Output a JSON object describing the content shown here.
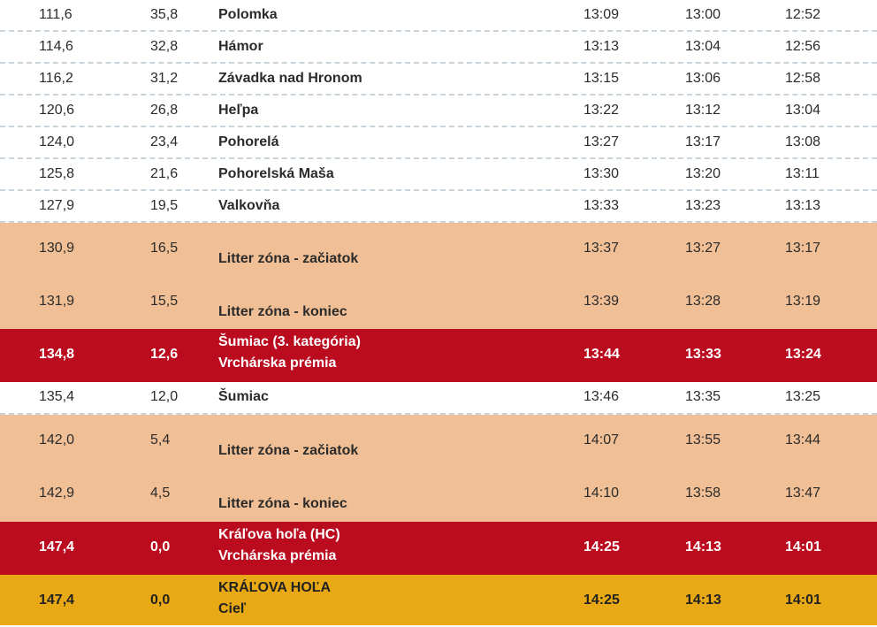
{
  "rows": [
    {
      "km": "111,6",
      "remaining": "35,8",
      "name": "Polomka",
      "name2": "",
      "t1": "13:09",
      "t2": "13:00",
      "t3": "12:52",
      "kind": "plain"
    },
    {
      "km": "114,6",
      "remaining": "32,8",
      "name": "Hámor",
      "name2": "",
      "t1": "13:13",
      "t2": "13:04",
      "t3": "12:56",
      "kind": "plain"
    },
    {
      "km": "116,2",
      "remaining": "31,2",
      "name": "Závadka nad Hronom",
      "name2": "",
      "t1": "13:15",
      "t2": "13:06",
      "t3": "12:58",
      "kind": "plain"
    },
    {
      "km": "120,6",
      "remaining": "26,8",
      "name": "Heľpa",
      "name2": "",
      "t1": "13:22",
      "t2": "13:12",
      "t3": "13:04",
      "kind": "plain"
    },
    {
      "km": "124,0",
      "remaining": "23,4",
      "name": "Pohorelá",
      "name2": "",
      "t1": "13:27",
      "t2": "13:17",
      "t3": "13:08",
      "kind": "plain"
    },
    {
      "km": "125,8",
      "remaining": "21,6",
      "name": "Pohorelská Maša",
      "name2": "",
      "t1": "13:30",
      "t2": "13:20",
      "t3": "13:11",
      "kind": "plain"
    },
    {
      "km": "127,9",
      "remaining": "19,5",
      "name": "Valkovňa",
      "name2": "",
      "t1": "13:33",
      "t2": "13:23",
      "t3": "13:13",
      "kind": "plain"
    },
    {
      "km": "130,9",
      "remaining": "16,5",
      "name": "Litter zóna - začiatok",
      "name2": "",
      "t1": "13:37",
      "t2": "13:27",
      "t3": "13:17",
      "kind": "litter"
    },
    {
      "km": "131,9",
      "remaining": "15,5",
      "name": "Litter zóna - koniec",
      "name2": "",
      "t1": "13:39",
      "t2": "13:28",
      "t3": "13:19",
      "kind": "litter"
    },
    {
      "km": "134,8",
      "remaining": "12,6",
      "name": "Šumiac (3. kategória)",
      "name2": "Vrchárska prémia",
      "t1": "13:44",
      "t2": "13:33",
      "t3": "13:24",
      "kind": "kom"
    },
    {
      "km": "135,4",
      "remaining": "12,0",
      "name": "Šumiac",
      "name2": "",
      "t1": "13:46",
      "t2": "13:35",
      "t3": "13:25",
      "kind": "plain"
    },
    {
      "km": "142,0",
      "remaining": "5,4",
      "name": "Litter zóna - začiatok",
      "name2": "",
      "t1": "14:07",
      "t2": "13:55",
      "t3": "13:44",
      "kind": "litter"
    },
    {
      "km": "142,9",
      "remaining": "4,5",
      "name": "Litter zóna - koniec",
      "name2": "",
      "t1": "14:10",
      "t2": "13:58",
      "t3": "13:47",
      "kind": "litter"
    },
    {
      "km": "147,4",
      "remaining": "0,0",
      "name": "Kráľova hoľa (HC)",
      "name2": "Vrchárska prémia",
      "t1": "14:25",
      "t2": "14:13",
      "t3": "14:01",
      "kind": "kom"
    },
    {
      "km": "147,4",
      "remaining": "0,0",
      "name": "KRÁĽOVA HOĽA",
      "name2": "Cieľ",
      "t1": "14:25",
      "t2": "14:13",
      "t3": "14:01",
      "kind": "finish"
    }
  ],
  "colors": {
    "litter": "#f1bf95",
    "kom": "#bb0b1f",
    "finish": "#e8a914",
    "divider": "#c9d3da"
  }
}
